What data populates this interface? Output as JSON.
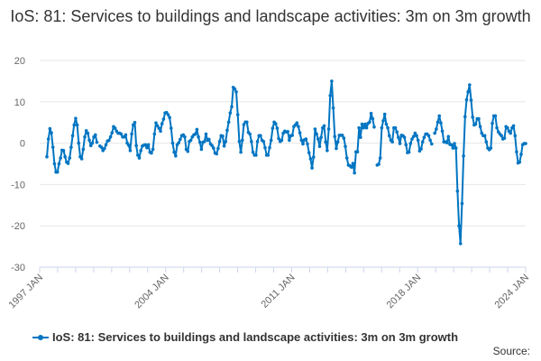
{
  "chart_data": {
    "type": "line",
    "title": "IoS: 81: Services to buildings and landscape activities: 3m on 3m growth",
    "ylim": [
      -30,
      20
    ],
    "yticks": [
      "20",
      "10",
      "0",
      "-10",
      "-20",
      "-30"
    ],
    "xticks": [
      "1997 JAN",
      "2004 JAN",
      "2011 JAN",
      "2018 JAN",
      "2024 JAN"
    ],
    "grid": true,
    "legend_position": "bottom",
    "color": "#0075c2",
    "series": [
      {
        "name": "IoS: 81: Services to buildings and landscape activities: 3m on 3m growth",
        "values": [
          -3.3,
          1,
          3.5,
          2.5,
          -1,
          -5,
          -7,
          -7,
          -5,
          -3.6,
          -1.7,
          -1.8,
          -3.3,
          -4.6,
          -4.9,
          -3.6,
          -1,
          1.8,
          4.4,
          6,
          4.4,
          0,
          -3.3,
          -3.8,
          -1.5,
          1.5,
          3,
          2.4,
          0.7,
          -0.6,
          0,
          1.5,
          2,
          0.2,
          null,
          -0.7,
          -1,
          -1.8,
          -1.3,
          -0.4,
          0.5,
          0.7,
          1.5,
          2.5,
          4,
          3.6,
          2.9,
          2.4,
          2.4,
          2.2,
          1.5,
          1.5,
          2,
          0,
          -0.5,
          -1.8,
          2.2,
          4.4,
          5,
          -0.6,
          -2.9,
          -3.6,
          -1.8,
          -0.7,
          -0.5,
          -0.4,
          -1.1,
          -0.4,
          -2.2,
          -2.4,
          -1.5,
          2.2,
          4.9,
          4.2,
          3.6,
          2.9,
          4.7,
          5.8,
          7.3,
          7.4,
          6.9,
          6.2,
          3.6,
          0,
          -2.2,
          -3.1,
          -0.4,
          0.1,
          0.9,
          1.8,
          2,
          1.5,
          -1.5,
          -2,
          0.4,
          0.7,
          1.5,
          2,
          2.2,
          3.3,
          1.5,
          0.2,
          -1.5,
          0.2,
          0.4,
          2.2,
          0.7,
          0.9,
          -0.2,
          -0.6,
          -1.2,
          -2.4,
          -2.6,
          -1.3,
          0.4,
          1.8,
          1.7,
          -0.7,
          0.4,
          3.1,
          5.1,
          7.3,
          8.8,
          13.5,
          13.1,
          12.4,
          6.9,
          0.4,
          -2.2,
          0.7,
          4.5,
          5.1,
          5.1,
          2.6,
          2.2,
          0.4,
          -2.2,
          -2.9,
          -2.9,
          0.4,
          1.8,
          1.8,
          0.7,
          0.4,
          -1.1,
          -2.9,
          -2.9,
          -1.1,
          0.7,
          3.6,
          5.1,
          4.7,
          3.6,
          1.1,
          0.4,
          0.7,
          2.4,
          2.9,
          2.7,
          2.8,
          0.7,
          1.8,
          1.9,
          4,
          4.4,
          4.9,
          4,
          2.5,
          0.7,
          -0.2,
          0.8,
          1,
          -0.2,
          -2.3,
          -3.8,
          -6,
          -3.4,
          3.4,
          2.2,
          1,
          -0.8,
          1.4,
          3.7,
          4.2,
          0.3,
          -1.8,
          3.4,
          11.5,
          15,
          8.5,
          1.6,
          -1.3,
          0.3,
          1.9,
          1.9,
          1.9,
          1.2,
          -0.8,
          -3.6,
          -5.3,
          -5.5,
          -5.8,
          -4.9,
          -7.2,
          -2.1,
          -2.1,
          3.7,
          1.4,
          4.6,
          3.7,
          4.6,
          3.7,
          4.8,
          5.1,
          7.2,
          5.9,
          3.9,
          null,
          -5.3,
          -5.1,
          -3.6,
          3.7,
          5.4,
          7,
          4.6,
          3.7,
          1.8,
          0.7,
          0.3,
          3.7,
          3.7,
          2.7,
          1.4,
          -0.1,
          1.9,
          1.8,
          1.4,
          -0.4,
          -2.3,
          -2.2,
          -0.1,
          1,
          1.6,
          2.4,
          1.8,
          0.7,
          -1.9,
          -1.4,
          0.3,
          1.4,
          2.2,
          2.2,
          1.8,
          0.7,
          -0.2,
          null,
          2.4,
          3.4,
          5.1,
          6.6,
          4.9,
          2.9,
          0.3,
          0.3,
          0.1,
          1.6,
          -0.3,
          -0.4,
          -1.2,
          -0.1,
          -1.2,
          -11.6,
          -20,
          -24.3,
          -14.6,
          -3.1,
          6.4,
          10.5,
          12.4,
          14.1,
          10.4,
          6.3,
          4.4,
          4.6,
          5.9,
          5.9,
          4,
          2.4,
          1.8,
          1.8,
          0.3,
          -1.2,
          -1.6,
          -1.2,
          4.8,
          6.6,
          6.6,
          3.7,
          2.7,
          2.2,
          1.8,
          1,
          1.2,
          4,
          3.7,
          2.9,
          2.4,
          3.7,
          4.2,
          1.8,
          -2.1,
          -4.8,
          -4.6,
          -2.7,
          -0.4,
          -0.1,
          -0.1
        ]
      }
    ]
  },
  "legend_label": "IoS: 81: Services to buildings and landscape activities: 3m on 3m growth",
  "source_label": "Source:"
}
